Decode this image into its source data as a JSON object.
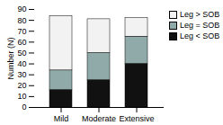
{
  "chart_data": {
    "type": "bar",
    "stacked": true,
    "categories": [
      "Mild",
      "Moderate",
      "Extensive"
    ],
    "series": [
      {
        "name": "Leg < SOB",
        "color": "#111111",
        "values": [
          16,
          25,
          40
        ]
      },
      {
        "name": "Leg = SOB",
        "color": "#8faaa8",
        "values": [
          18,
          25,
          25
        ]
      },
      {
        "name": "Leg > SOB",
        "color": "#f2f2f2",
        "values": [
          50,
          31,
          17
        ]
      }
    ],
    "ylabel": "Number (N)",
    "ylim": [
      0,
      90
    ],
    "yticks": [
      0,
      10,
      20,
      30,
      40,
      50,
      60,
      70,
      80,
      90
    ],
    "grid": false,
    "legend": "upper right"
  }
}
